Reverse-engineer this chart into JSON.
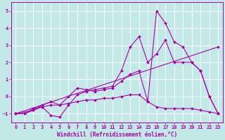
{
  "xlabel": "Windchill (Refroidissement éolien,°C)",
  "xlim": [
    -0.5,
    23.5
  ],
  "ylim": [
    -1.5,
    5.5
  ],
  "yticks": [
    -1,
    0,
    1,
    2,
    3,
    4,
    5
  ],
  "xticks": [
    0,
    1,
    2,
    3,
    4,
    5,
    6,
    7,
    8,
    9,
    10,
    11,
    12,
    13,
    14,
    15,
    16,
    17,
    18,
    19,
    20,
    21,
    22,
    23
  ],
  "bg_color": "#c2e8e8",
  "line_color": "#aa00aa",
  "grid_color": "#ffffff",
  "lines": [
    {
      "x": [
        0,
        23
      ],
      "y": [
        -1.0,
        2.9
      ]
    },
    {
      "x": [
        0,
        2,
        3,
        4,
        5,
        6,
        7,
        8,
        9,
        10,
        11,
        12,
        13,
        14,
        15,
        16,
        17,
        18,
        19,
        20,
        21,
        22,
        23
      ],
      "y": [
        -1.0,
        -0.8,
        -0.6,
        -0.5,
        -0.5,
        -0.4,
        -0.3,
        -0.2,
        -0.2,
        -0.1,
        -0.1,
        0.0,
        0.1,
        0.1,
        -0.3,
        -0.6,
        -0.7,
        -0.7,
        -0.7,
        -0.7,
        -0.8,
        -0.9,
        -1.0
      ]
    },
    {
      "x": [
        0,
        1,
        2,
        3,
        4,
        5,
        6,
        7,
        8,
        9,
        10,
        11,
        12,
        13,
        14,
        15,
        16,
        17,
        18,
        19,
        20,
        21,
        22,
        23
      ],
      "y": [
        -1.0,
        -1.0,
        -0.7,
        -0.6,
        -1.1,
        -1.2,
        -0.5,
        0.1,
        0.3,
        0.4,
        0.5,
        0.6,
        1.5,
        2.9,
        3.5,
        2.0,
        2.5,
        3.3,
        2.0,
        2.0,
        2.0,
        1.5,
        0.0,
        -1.0
      ]
    },
    {
      "comment": "line with peak at 16=5.0, 17=4.3",
      "x": [
        0,
        1,
        2,
        3,
        4,
        5,
        6,
        7,
        8,
        9,
        10,
        11,
        12,
        13,
        14,
        15,
        16,
        17,
        18,
        19,
        20,
        21,
        22,
        23
      ],
      "y": [
        -1.0,
        -1.0,
        -0.8,
        -0.5,
        -0.3,
        -0.5,
        0.0,
        0.5,
        0.4,
        0.3,
        0.4,
        0.5,
        0.9,
        1.3,
        1.5,
        -0.3,
        5.0,
        4.3,
        3.2,
        2.9,
        2.0,
        1.5,
        0.0,
        -1.0
      ]
    }
  ]
}
